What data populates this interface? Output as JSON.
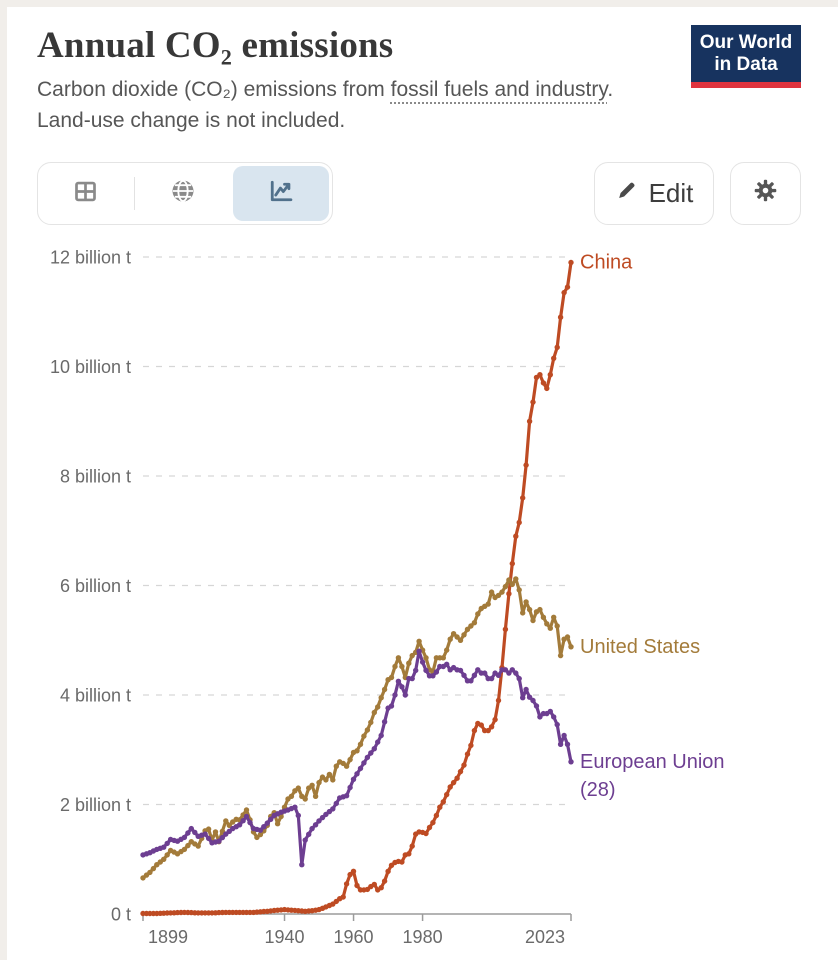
{
  "header": {
    "title": "Annual CO₂ emissions",
    "subtitle_prefix": "Carbon dioxide (CO₂) emissions from ",
    "subtitle_link": "fossil fuels and industry",
    "subtitle_suffix": ". Land-use change is not included.",
    "logo": {
      "line1": "Our World",
      "line2": "in Data",
      "bg": "#17335f",
      "accent": "#e0333e"
    }
  },
  "toolbar": {
    "view_tabs": [
      {
        "id": "table",
        "icon": "table-icon",
        "selected": false
      },
      {
        "id": "map",
        "icon": "globe-icon",
        "selected": false
      },
      {
        "id": "chart",
        "icon": "line-chart-icon",
        "selected": true
      }
    ],
    "selected_tab_bg": "#d9e5ef",
    "edit_label": "Edit"
  },
  "chart_data": {
    "type": "line",
    "title": "Annual CO₂ emissions",
    "unit": "billion tonnes",
    "x_domain": [
      1899,
      2023
    ],
    "y_domain": [
      0,
      12
    ],
    "grid": "horizontal-dashed",
    "legend_position": "end-of-line",
    "colors": {
      "grid": "#d6d6d6",
      "axis": "#9b9b9b",
      "tick_text": "#6a6a6a"
    },
    "y_ticks": [
      {
        "v": 0,
        "label": "0 t"
      },
      {
        "v": 2,
        "label": "2 billion t"
      },
      {
        "v": 4,
        "label": "4 billion t"
      },
      {
        "v": 6,
        "label": "6 billion t"
      },
      {
        "v": 8,
        "label": "8 billion t"
      },
      {
        "v": 10,
        "label": "10 billion t"
      },
      {
        "v": 12,
        "label": "12 billion t"
      }
    ],
    "x_ticks": [
      {
        "year": 1899,
        "label": "1899"
      },
      {
        "year": 1940,
        "label": "1940"
      },
      {
        "year": 1960,
        "label": "1960"
      },
      {
        "year": 1980,
        "label": "1980"
      },
      {
        "year": 2023,
        "label": "2023"
      }
    ],
    "series": [
      {
        "name": "China",
        "label_lines": [
          "China"
        ],
        "color": "#be4b23",
        "points": [
          [
            1899,
            0.01
          ],
          [
            1903,
            0.01
          ],
          [
            1907,
            0.02
          ],
          [
            1911,
            0.03
          ],
          [
            1915,
            0.02
          ],
          [
            1919,
            0.02
          ],
          [
            1923,
            0.03
          ],
          [
            1927,
            0.03
          ],
          [
            1931,
            0.03
          ],
          [
            1935,
            0.05
          ],
          [
            1938,
            0.07
          ],
          [
            1940,
            0.08
          ],
          [
            1942,
            0.07
          ],
          [
            1944,
            0.06
          ],
          [
            1946,
            0.05
          ],
          [
            1948,
            0.06
          ],
          [
            1950,
            0.08
          ],
          [
            1952,
            0.13
          ],
          [
            1954,
            0.18
          ],
          [
            1956,
            0.28
          ],
          [
            1957,
            0.31
          ],
          [
            1958,
            0.55
          ],
          [
            1959,
            0.72
          ],
          [
            1960,
            0.78
          ],
          [
            1961,
            0.52
          ],
          [
            1962,
            0.44
          ],
          [
            1963,
            0.44
          ],
          [
            1964,
            0.45
          ],
          [
            1965,
            0.5
          ],
          [
            1966,
            0.54
          ],
          [
            1967,
            0.44
          ],
          [
            1968,
            0.48
          ],
          [
            1969,
            0.6
          ],
          [
            1970,
            0.78
          ],
          [
            1971,
            0.89
          ],
          [
            1972,
            0.94
          ],
          [
            1973,
            0.96
          ],
          [
            1974,
            0.95
          ],
          [
            1975,
            1.08
          ],
          [
            1976,
            1.1
          ],
          [
            1977,
            1.24
          ],
          [
            1978,
            1.46
          ],
          [
            1979,
            1.5
          ],
          [
            1980,
            1.49
          ],
          [
            1981,
            1.47
          ],
          [
            1982,
            1.58
          ],
          [
            1983,
            1.67
          ],
          [
            1984,
            1.8
          ],
          [
            1985,
            1.95
          ],
          [
            1986,
            2.05
          ],
          [
            1987,
            2.18
          ],
          [
            1988,
            2.32
          ],
          [
            1989,
            2.4
          ],
          [
            1990,
            2.48
          ],
          [
            1991,
            2.6
          ],
          [
            1992,
            2.72
          ],
          [
            1993,
            2.92
          ],
          [
            1994,
            3.08
          ],
          [
            1995,
            3.35
          ],
          [
            1996,
            3.48
          ],
          [
            1997,
            3.45
          ],
          [
            1998,
            3.35
          ],
          [
            1999,
            3.35
          ],
          [
            2000,
            3.42
          ],
          [
            2001,
            3.55
          ],
          [
            2002,
            3.9
          ],
          [
            2003,
            4.5
          ],
          [
            2004,
            5.2
          ],
          [
            2005,
            5.85
          ],
          [
            2006,
            6.4
          ],
          [
            2007,
            6.9
          ],
          [
            2008,
            7.15
          ],
          [
            2009,
            7.6
          ],
          [
            2010,
            8.2
          ],
          [
            2011,
            9.0
          ],
          [
            2012,
            9.35
          ],
          [
            2013,
            9.8
          ],
          [
            2014,
            9.85
          ],
          [
            2015,
            9.7
          ],
          [
            2016,
            9.6
          ],
          [
            2017,
            9.85
          ],
          [
            2018,
            10.15
          ],
          [
            2019,
            10.35
          ],
          [
            2020,
            10.9
          ],
          [
            2021,
            11.35
          ],
          [
            2022,
            11.45
          ],
          [
            2023,
            11.9
          ]
        ]
      },
      {
        "name": "United States",
        "label_lines": [
          "United States"
        ],
        "color": "#a37b3a",
        "points": [
          [
            1899,
            0.66
          ],
          [
            1901,
            0.76
          ],
          [
            1903,
            0.9
          ],
          [
            1905,
            1.0
          ],
          [
            1907,
            1.16
          ],
          [
            1909,
            1.1
          ],
          [
            1911,
            1.18
          ],
          [
            1913,
            1.32
          ],
          [
            1915,
            1.24
          ],
          [
            1917,
            1.52
          ],
          [
            1918,
            1.55
          ],
          [
            1919,
            1.35
          ],
          [
            1920,
            1.5
          ],
          [
            1921,
            1.32
          ],
          [
            1923,
            1.7
          ],
          [
            1924,
            1.62
          ],
          [
            1925,
            1.68
          ],
          [
            1926,
            1.73
          ],
          [
            1927,
            1.72
          ],
          [
            1929,
            1.9
          ],
          [
            1930,
            1.72
          ],
          [
            1931,
            1.5
          ],
          [
            1932,
            1.4
          ],
          [
            1933,
            1.45
          ],
          [
            1934,
            1.52
          ],
          [
            1935,
            1.62
          ],
          [
            1936,
            1.78
          ],
          [
            1937,
            1.85
          ],
          [
            1938,
            1.65
          ],
          [
            1939,
            1.78
          ],
          [
            1940,
            1.95
          ],
          [
            1941,
            2.1
          ],
          [
            1942,
            2.15
          ],
          [
            1943,
            2.25
          ],
          [
            1944,
            2.3
          ],
          [
            1945,
            2.15
          ],
          [
            1946,
            2.1
          ],
          [
            1947,
            2.3
          ],
          [
            1948,
            2.35
          ],
          [
            1949,
            2.15
          ],
          [
            1950,
            2.4
          ],
          [
            1951,
            2.5
          ],
          [
            1952,
            2.45
          ],
          [
            1953,
            2.55
          ],
          [
            1954,
            2.45
          ],
          [
            1955,
            2.7
          ],
          [
            1956,
            2.78
          ],
          [
            1957,
            2.75
          ],
          [
            1958,
            2.7
          ],
          [
            1959,
            2.82
          ],
          [
            1960,
            2.95
          ],
          [
            1961,
            2.98
          ],
          [
            1962,
            3.1
          ],
          [
            1963,
            3.25
          ],
          [
            1964,
            3.36
          ],
          [
            1965,
            3.5
          ],
          [
            1966,
            3.68
          ],
          [
            1967,
            3.78
          ],
          [
            1968,
            3.95
          ],
          [
            1969,
            4.1
          ],
          [
            1970,
            4.28
          ],
          [
            1971,
            4.32
          ],
          [
            1972,
            4.52
          ],
          [
            1973,
            4.68
          ],
          [
            1974,
            4.52
          ],
          [
            1975,
            4.32
          ],
          [
            1976,
            4.58
          ],
          [
            1977,
            4.72
          ],
          [
            1978,
            4.78
          ],
          [
            1979,
            4.98
          ],
          [
            1980,
            4.82
          ],
          [
            1981,
            4.68
          ],
          [
            1982,
            4.46
          ],
          [
            1983,
            4.42
          ],
          [
            1984,
            4.68
          ],
          [
            1985,
            4.68
          ],
          [
            1986,
            4.68
          ],
          [
            1987,
            4.82
          ],
          [
            1988,
            5.02
          ],
          [
            1989,
            5.12
          ],
          [
            1990,
            5.06
          ],
          [
            1991,
            5.0
          ],
          [
            1992,
            5.1
          ],
          [
            1993,
            5.2
          ],
          [
            1994,
            5.26
          ],
          [
            1995,
            5.32
          ],
          [
            1996,
            5.48
          ],
          [
            1997,
            5.58
          ],
          [
            1998,
            5.62
          ],
          [
            1999,
            5.66
          ],
          [
            2000,
            5.88
          ],
          [
            2001,
            5.78
          ],
          [
            2002,
            5.82
          ],
          [
            2003,
            5.88
          ],
          [
            2004,
            5.98
          ],
          [
            2005,
            6.1
          ],
          [
            2006,
            6.02
          ],
          [
            2007,
            6.12
          ],
          [
            2008,
            5.92
          ],
          [
            2009,
            5.5
          ],
          [
            2010,
            5.7
          ],
          [
            2011,
            5.56
          ],
          [
            2012,
            5.36
          ],
          [
            2013,
            5.52
          ],
          [
            2014,
            5.56
          ],
          [
            2015,
            5.42
          ],
          [
            2016,
            5.3
          ],
          [
            2017,
            5.22
          ],
          [
            2018,
            5.42
          ],
          [
            2019,
            5.26
          ],
          [
            2020,
            4.72
          ],
          [
            2021,
            5.02
          ],
          [
            2022,
            5.06
          ],
          [
            2023,
            4.88
          ]
        ]
      },
      {
        "name": "European Union (28)",
        "label_lines": [
          "European Union",
          "(28)"
        ],
        "color": "#6d3e91",
        "points": [
          [
            1899,
            1.08
          ],
          [
            1901,
            1.12
          ],
          [
            1903,
            1.18
          ],
          [
            1905,
            1.22
          ],
          [
            1907,
            1.36
          ],
          [
            1909,
            1.33
          ],
          [
            1911,
            1.4
          ],
          [
            1913,
            1.56
          ],
          [
            1915,
            1.42
          ],
          [
            1917,
            1.46
          ],
          [
            1919,
            1.3
          ],
          [
            1921,
            1.33
          ],
          [
            1923,
            1.46
          ],
          [
            1925,
            1.56
          ],
          [
            1927,
            1.63
          ],
          [
            1929,
            1.78
          ],
          [
            1931,
            1.56
          ],
          [
            1933,
            1.53
          ],
          [
            1935,
            1.66
          ],
          [
            1937,
            1.8
          ],
          [
            1939,
            1.86
          ],
          [
            1941,
            1.9
          ],
          [
            1943,
            1.95
          ],
          [
            1944,
            1.8
          ],
          [
            1945,
            0.9
          ],
          [
            1946,
            1.35
          ],
          [
            1948,
            1.56
          ],
          [
            1950,
            1.7
          ],
          [
            1952,
            1.82
          ],
          [
            1954,
            1.92
          ],
          [
            1956,
            2.12
          ],
          [
            1958,
            2.16
          ],
          [
            1960,
            2.46
          ],
          [
            1962,
            2.66
          ],
          [
            1964,
            2.86
          ],
          [
            1966,
            3.02
          ],
          [
            1968,
            3.26
          ],
          [
            1970,
            3.76
          ],
          [
            1971,
            3.8
          ],
          [
            1972,
            4.0
          ],
          [
            1973,
            4.25
          ],
          [
            1974,
            4.15
          ],
          [
            1975,
            4.0
          ],
          [
            1976,
            4.3
          ],
          [
            1977,
            4.3
          ],
          [
            1978,
            4.45
          ],
          [
            1979,
            4.8
          ],
          [
            1980,
            4.6
          ],
          [
            1981,
            4.45
          ],
          [
            1982,
            4.35
          ],
          [
            1983,
            4.35
          ],
          [
            1984,
            4.42
          ],
          [
            1985,
            4.52
          ],
          [
            1986,
            4.52
          ],
          [
            1987,
            4.56
          ],
          [
            1988,
            4.46
          ],
          [
            1989,
            4.5
          ],
          [
            1990,
            4.46
          ],
          [
            1991,
            4.45
          ],
          [
            1992,
            4.36
          ],
          [
            1993,
            4.26
          ],
          [
            1994,
            4.26
          ],
          [
            1995,
            4.36
          ],
          [
            1996,
            4.46
          ],
          [
            1997,
            4.4
          ],
          [
            1998,
            4.4
          ],
          [
            1999,
            4.3
          ],
          [
            2000,
            4.3
          ],
          [
            2001,
            4.4
          ],
          [
            2002,
            4.36
          ],
          [
            2003,
            4.46
          ],
          [
            2004,
            4.46
          ],
          [
            2005,
            4.4
          ],
          [
            2006,
            4.46
          ],
          [
            2007,
            4.4
          ],
          [
            2008,
            4.3
          ],
          [
            2009,
            3.95
          ],
          [
            2010,
            4.1
          ],
          [
            2011,
            3.96
          ],
          [
            2012,
            3.9
          ],
          [
            2013,
            3.8
          ],
          [
            2014,
            3.6
          ],
          [
            2015,
            3.66
          ],
          [
            2016,
            3.66
          ],
          [
            2017,
            3.7
          ],
          [
            2018,
            3.6
          ],
          [
            2019,
            3.46
          ],
          [
            2020,
            3.1
          ],
          [
            2021,
            3.26
          ],
          [
            2022,
            3.1
          ],
          [
            2023,
            2.78
          ]
        ]
      }
    ]
  }
}
